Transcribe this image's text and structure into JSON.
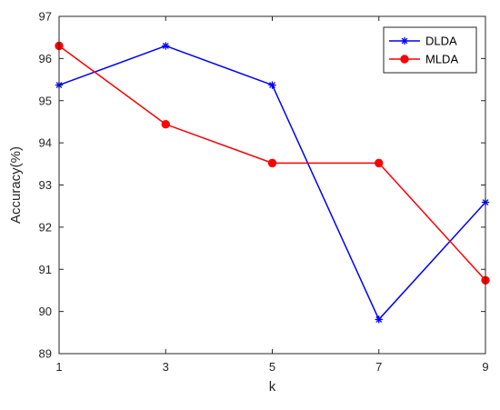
{
  "chart_data": {
    "type": "line",
    "xlabel": "k",
    "ylabel": "Accuracy(%)",
    "x": [
      1,
      3,
      5,
      7,
      9
    ],
    "xlim": [
      1,
      9
    ],
    "ylim": [
      89,
      97
    ],
    "xticks": [
      1,
      3,
      5,
      7,
      9
    ],
    "yticks": [
      89,
      90,
      91,
      92,
      93,
      94,
      95,
      96,
      97
    ],
    "grid": false,
    "legend_position": "top-right",
    "series": [
      {
        "name": "DLDA",
        "color": "#0000ff",
        "marker": "asterisk",
        "values": [
          95.37,
          96.3,
          95.37,
          89.81,
          92.59
        ]
      },
      {
        "name": "MLDA",
        "color": "#ff0000",
        "marker": "circle",
        "values": [
          96.3,
          94.44,
          93.52,
          93.52,
          90.74
        ]
      }
    ]
  }
}
